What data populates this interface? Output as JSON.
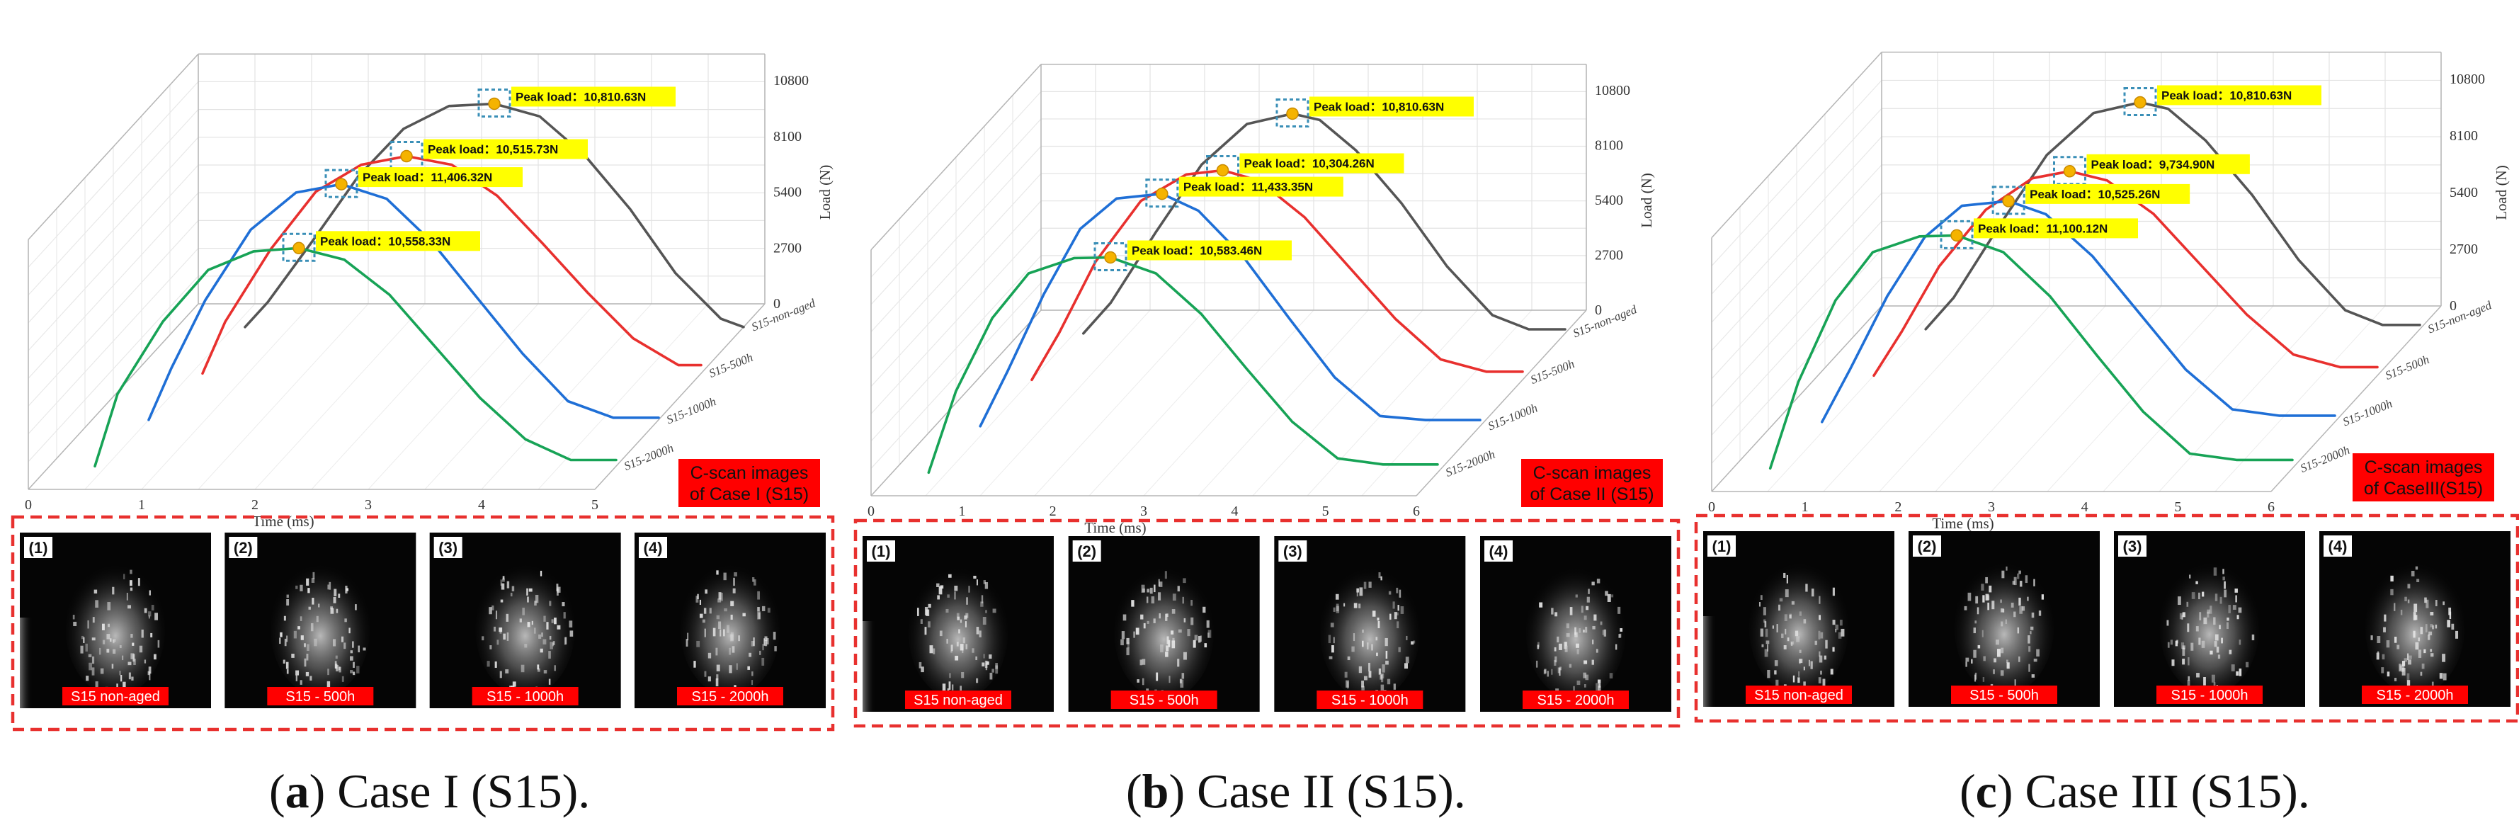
{
  "chart_data": [
    {
      "type": "line",
      "view": "3d",
      "xlabel": "Time (ms)",
      "ylabel": "Load (N)",
      "x_ticks": [
        "0",
        "1",
        "2",
        "3",
        "4",
        "5"
      ],
      "y_ticks": [
        "0",
        "2700",
        "5400",
        "8100",
        "10800"
      ],
      "xlim": [
        0,
        5
      ],
      "ylim": [
        0,
        10800
      ],
      "series": [
        {
          "name": "S15-non-aged",
          "color": "#555555",
          "x": [
            0.6,
            0.8,
            1.2,
            1.6,
            2.0,
            2.4,
            2.8,
            3.2,
            3.6,
            4.0,
            4.4,
            4.8,
            5.0
          ],
          "y": [
            0,
            1200,
            4200,
            7300,
            9600,
            10700,
            10810,
            10200,
            8300,
            5700,
            2600,
            400,
            0
          ]
        },
        {
          "name": "S15-500h",
          "color": "#e8302e",
          "x": [
            0.6,
            0.8,
            1.2,
            1.6,
            2.0,
            2.4,
            2.8,
            3.2,
            3.6,
            4.0,
            4.4,
            4.8,
            5.0
          ],
          "y": [
            0,
            2500,
            6000,
            8800,
            10100,
            10516,
            10100,
            8600,
            6300,
            3900,
            1700,
            400,
            400
          ]
        },
        {
          "name": "S15-1000h",
          "color": "#1f6fd6",
          "x": [
            0.5,
            0.7,
            1.0,
            1.4,
            1.8,
            2.2,
            2.6,
            3.0,
            3.4,
            3.8,
            4.2,
            4.6,
            5.0
          ],
          "y": [
            0,
            2500,
            5800,
            9200,
            11000,
            11406,
            10700,
            8600,
            5900,
            3200,
            900,
            100,
            100
          ]
        },
        {
          "name": "S15-2000h",
          "color": "#17a356",
          "x": [
            0.4,
            0.6,
            1.0,
            1.4,
            1.8,
            2.2,
            2.6,
            3.0,
            3.4,
            3.8,
            4.2,
            4.6,
            5.0
          ],
          "y": [
            0,
            3500,
            7000,
            9500,
            10400,
            10558,
            10000,
            8300,
            5800,
            3300,
            1300,
            300,
            300
          ]
        }
      ],
      "peaks": [
        {
          "series": "S15-non-aged",
          "label": "Peak load：10,810.63N"
        },
        {
          "series": "S15-500h",
          "label": "Peak load：10,515.73N"
        },
        {
          "series": "S15-1000h",
          "label": "Peak load：11,406.32N"
        },
        {
          "series": "S15-2000h",
          "label": "Peak load：10,558.33N"
        }
      ]
    },
    {
      "type": "line",
      "view": "3d",
      "xlabel": "Time (ms)",
      "ylabel": "Load (N)",
      "x_ticks": [
        "0",
        "1",
        "2",
        "3",
        "4",
        "5",
        "6"
      ],
      "y_ticks": [
        "0",
        "2700",
        "5400",
        "8100",
        "10800"
      ],
      "xlim": [
        0,
        6
      ],
      "ylim": [
        0,
        10800
      ],
      "series": [
        {
          "name": "S15-non-aged",
          "color": "#555555",
          "x": [
            0.7,
            1.0,
            1.5,
            2.0,
            2.5,
            3.0,
            3.3,
            3.7,
            4.2,
            4.7,
            5.2,
            5.6,
            6.0
          ],
          "y": [
            0,
            1500,
            5000,
            8300,
            10300,
            10810,
            10500,
            9000,
            6400,
            3300,
            900,
            200,
            200
          ]
        },
        {
          "name": "S15-500h",
          "color": "#e8302e",
          "x": [
            0.6,
            0.9,
            1.3,
            1.8,
            2.3,
            2.7,
            3.1,
            3.6,
            4.1,
            4.6,
            5.1,
            5.6,
            6.0
          ],
          "y": [
            0,
            2300,
            5800,
            8800,
            10100,
            10304,
            9800,
            8000,
            5500,
            3000,
            1000,
            400,
            400
          ]
        },
        {
          "name": "S15-1000h",
          "color": "#1f6fd6",
          "x": [
            0.5,
            0.8,
            1.2,
            1.6,
            2.0,
            2.5,
            2.9,
            3.4,
            3.9,
            4.4,
            4.9,
            5.4,
            6.0
          ],
          "y": [
            0,
            2700,
            6500,
            9700,
            11200,
            11433,
            10600,
            8300,
            5300,
            2400,
            500,
            300,
            300
          ]
        },
        {
          "name": "S15-2000h",
          "color": "#17a356",
          "x": [
            0.4,
            0.7,
            1.1,
            1.5,
            2.0,
            2.4,
            2.9,
            3.4,
            3.9,
            4.4,
            4.9,
            5.4,
            6.0
          ],
          "y": [
            0,
            4000,
            7600,
            9800,
            10550,
            10583,
            9800,
            7800,
            5100,
            2500,
            700,
            400,
            400
          ]
        }
      ],
      "peaks": [
        {
          "series": "S15-non-aged",
          "label": "Peak load：10,810.63N"
        },
        {
          "series": "S15-500h",
          "label": "Peak load：10,304.26N"
        },
        {
          "series": "S15-1000h",
          "label": "Peak load：11,433.35N"
        },
        {
          "series": "S15-2000h",
          "label": "Peak load：10,583.46N"
        }
      ]
    },
    {
      "type": "line",
      "view": "3d",
      "xlabel": "Time (ms)",
      "ylabel": "Load (N)",
      "x_ticks": [
        "0",
        "1",
        "2",
        "3",
        "4",
        "5",
        "6"
      ],
      "y_ticks": [
        "0",
        "2700",
        "5400",
        "8100",
        "10800"
      ],
      "xlim": [
        0,
        6
      ],
      "ylim": [
        0,
        10800
      ],
      "series": [
        {
          "name": "S15-non-aged",
          "color": "#555555",
          "x": [
            0.7,
            1.0,
            1.5,
            2.0,
            2.5,
            3.0,
            3.3,
            3.7,
            4.2,
            4.7,
            5.2,
            5.6,
            6.0
          ],
          "y": [
            0,
            1500,
            5000,
            8300,
            10300,
            10810,
            10500,
            9000,
            6400,
            3300,
            900,
            200,
            200
          ]
        },
        {
          "name": "S15-500h",
          "color": "#e8302e",
          "x": [
            0.6,
            0.9,
            1.3,
            1.8,
            2.3,
            2.7,
            3.1,
            3.6,
            4.1,
            4.6,
            5.1,
            5.6,
            6.0
          ],
          "y": [
            0,
            2100,
            5200,
            7900,
            9400,
            9735,
            9300,
            7700,
            5300,
            2900,
            1000,
            400,
            400
          ]
        },
        {
          "name": "S15-1000h",
          "color": "#1f6fd6",
          "x": [
            0.5,
            0.8,
            1.2,
            1.6,
            2.0,
            2.5,
            2.9,
            3.4,
            3.9,
            4.4,
            4.9,
            5.4,
            6.0
          ],
          "y": [
            0,
            2500,
            6000,
            8800,
            10300,
            10525,
            9900,
            7900,
            5200,
            2500,
            600,
            300,
            300
          ]
        },
        {
          "name": "S15-2000h",
          "color": "#17a356",
          "x": [
            0.4,
            0.7,
            1.1,
            1.5,
            2.0,
            2.4,
            2.9,
            3.4,
            3.9,
            4.4,
            4.9,
            5.4,
            6.0
          ],
          "y": [
            0,
            4100,
            8000,
            10300,
            11050,
            11100,
            10300,
            8200,
            5400,
            2700,
            700,
            400,
            400
          ]
        }
      ],
      "peaks": [
        {
          "series": "S15-non-aged",
          "label": "Peak load：10,810.63N"
        },
        {
          "series": "S15-500h",
          "label": "Peak load：9,734.90N"
        },
        {
          "series": "S15-1000h",
          "label": "Peak load：10,525.26N"
        },
        {
          "series": "S15-2000h",
          "label": "Peak load：11,100.12N"
        }
      ]
    }
  ],
  "panels": [
    {
      "cscan_label": [
        "C-scan images",
        "of Case I (S15)"
      ],
      "images": [
        {
          "num": "(1)",
          "caption": "S15 non-aged"
        },
        {
          "num": "(2)",
          "caption": "S15 - 500h"
        },
        {
          "num": "(3)",
          "caption": "S15 - 1000h"
        },
        {
          "num": "(4)",
          "caption": "S15 - 2000h"
        }
      ],
      "caption_letter": "a",
      "caption_rest": ") Case I (S15)."
    },
    {
      "cscan_label": [
        "C-scan images",
        "of Case II (S15)"
      ],
      "images": [
        {
          "num": "(1)",
          "caption": "S15 non-aged"
        },
        {
          "num": "(2)",
          "caption": "S15 - 500h"
        },
        {
          "num": "(3)",
          "caption": "S15 - 1000h"
        },
        {
          "num": "(4)",
          "caption": "S15 - 2000h"
        }
      ],
      "caption_letter": "b",
      "caption_rest": ") Case II (S15)."
    },
    {
      "cscan_label": [
        "C-scan images",
        "of CaseIII(S15)"
      ],
      "images": [
        {
          "num": "(1)",
          "caption": "S15 non-aged"
        },
        {
          "num": "(2)",
          "caption": "S15 - 500h"
        },
        {
          "num": "(3)",
          "caption": "S15 - 1000h"
        },
        {
          "num": "(4)",
          "caption": "S15 - 2000h"
        }
      ],
      "caption_letter": "c",
      "caption_rest": ") Case III (S15)."
    }
  ],
  "colors": {
    "highlight": "#ffff00",
    "caption_red": "#ff0000",
    "frame_red": "#e8302e",
    "peak_marker": "#f5b300",
    "peak_box": "#3a8fb7"
  }
}
